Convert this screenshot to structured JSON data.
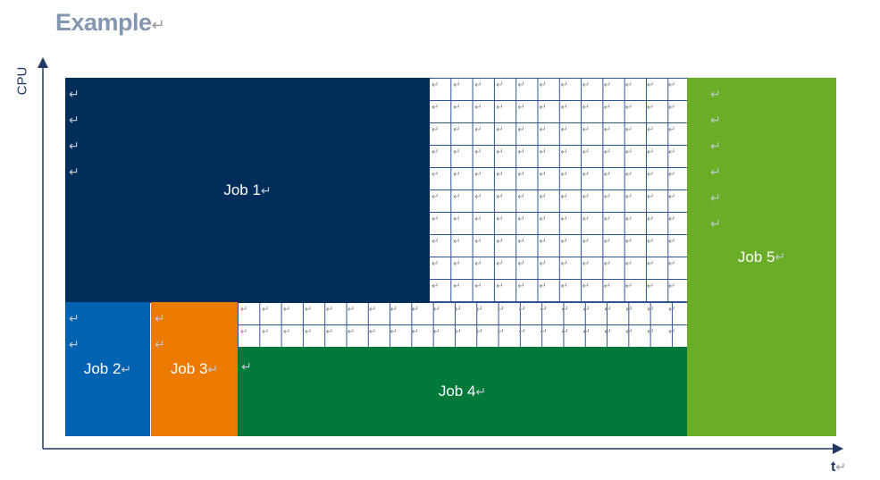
{
  "title": {
    "text": "Example",
    "mark": "↵"
  },
  "axes": {
    "y_label": "CPU",
    "x_label": "t",
    "x_mark": "↵"
  },
  "jobs": [
    {
      "label": "Job 1",
      "color": "#002d5a"
    },
    {
      "label": "Job 2",
      "color": "#0063b1"
    },
    {
      "label": "Job 3",
      "color": "#ed7a00"
    },
    {
      "label": "Job 4",
      "color": "#00793a"
    },
    {
      "label": "Job 5",
      "color": "#6aad27"
    }
  ],
  "mark": "↵",
  "colors": {
    "axis": "#1f3864",
    "grid": "#2f5597",
    "title": "#8497b0"
  }
}
